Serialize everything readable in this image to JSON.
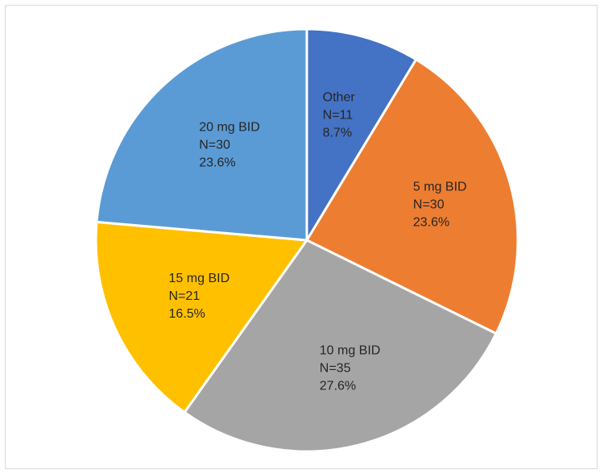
{
  "chart_data": {
    "type": "pie",
    "title": "",
    "start_angle_deg": 0,
    "direction": "clockwise",
    "slices": [
      {
        "label": "Other",
        "n": "N=11",
        "value": 11,
        "percent": "8.7%",
        "color": "#4472C4"
      },
      {
        "label": "5 mg BID",
        "n": "N=30",
        "value": 30,
        "percent": "23.6%",
        "color": "#ED7D31"
      },
      {
        "label": "10 mg BID",
        "n": "N=35",
        "value": 35,
        "percent": "27.6%",
        "color": "#A5A5A5"
      },
      {
        "label": "15 mg BID",
        "n": "N=21",
        "value": 21,
        "percent": "16.5%",
        "color": "#FFC000"
      },
      {
        "label": "20 mg BID",
        "n": "N=30",
        "value": 30,
        "percent": "23.6%",
        "color": "#5B9BD5"
      }
    ]
  }
}
